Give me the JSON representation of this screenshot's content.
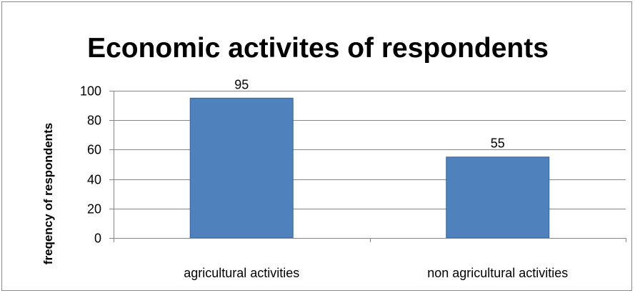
{
  "chart_data": {
    "type": "bar",
    "title": "Economic activites of respondents",
    "xlabel": "",
    "ylabel": "freqency of respondents",
    "categories": [
      "agricultural activities",
      "non agricultural activities"
    ],
    "values": [
      95,
      55
    ],
    "data_labels": [
      "95",
      "55"
    ],
    "ylim": [
      0,
      100
    ],
    "yticks": [
      0,
      20,
      40,
      60,
      80,
      100
    ],
    "grid": true,
    "legend": "none",
    "colors": {
      "bar": "#4f81bd",
      "bar_border": "#3c6696",
      "grid": "#868686",
      "axis": "#868686"
    }
  }
}
